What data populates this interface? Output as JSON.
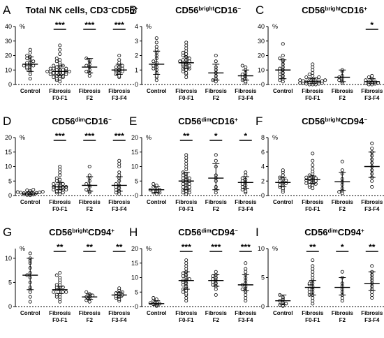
{
  "figure": {
    "group_labels": [
      "Control",
      "Fibrosis\nF0-F1",
      "Fibrosis\nF2",
      "Fibrosis\nF3-F4"
    ],
    "unit": "%"
  },
  "chart_data": [
    {
      "type": "scatter",
      "letter": "A",
      "title_parts": [
        {
          "t": "Total NK cells, CD3"
        },
        {
          "t": "−",
          "sup": true
        },
        {
          "t": "CD56"
        },
        {
          "t": "+",
          "sup": true
        }
      ],
      "ylim": [
        0,
        40
      ],
      "yticks": [
        0,
        10,
        20,
        30,
        40
      ],
      "groups": [
        {
          "median": 14,
          "lo": 9,
          "hi": 19,
          "points": [
            4,
            7,
            9,
            10,
            11,
            12,
            12,
            13,
            13,
            14,
            14,
            15,
            15,
            16,
            17,
            18,
            19,
            20,
            22,
            24
          ]
        },
        {
          "median": 9,
          "lo": 6,
          "hi": 13,
          "points": [
            2,
            3,
            4,
            4,
            5,
            5,
            6,
            6,
            6,
            7,
            7,
            7,
            8,
            8,
            8,
            8,
            9,
            9,
            9,
            9,
            10,
            10,
            10,
            11,
            11,
            11,
            12,
            12,
            13,
            13,
            14,
            15,
            16,
            17,
            18,
            21,
            24,
            27
          ]
        },
        {
          "median": 12,
          "lo": 8,
          "hi": 18,
          "points": [
            6,
            8,
            9,
            10,
            12,
            13,
            14,
            16,
            17,
            18
          ]
        },
        {
          "median": 10,
          "lo": 7,
          "hi": 14,
          "points": [
            5,
            6,
            7,
            8,
            9,
            9,
            10,
            10,
            11,
            12,
            12,
            13,
            14,
            15,
            17,
            20
          ]
        }
      ],
      "sig": [
        "",
        "***",
        "***",
        "***"
      ]
    },
    {
      "type": "scatter",
      "letter": "B",
      "title_parts": [
        {
          "t": "CD56"
        },
        {
          "t": "bright",
          "sup": true
        },
        {
          "t": "CD16"
        },
        {
          "t": "−",
          "sup": true
        }
      ],
      "ylim": [
        0,
        4
      ],
      "yticks": [
        0,
        1,
        2,
        3,
        4
      ],
      "groups": [
        {
          "median": 1.4,
          "lo": 0.7,
          "hi": 2.3,
          "points": [
            0.3,
            0.5,
            0.6,
            0.8,
            1.0,
            1.1,
            1.2,
            1.3,
            1.4,
            1.5,
            1.6,
            1.8,
            2.0,
            2.2,
            2.4,
            2.6,
            2.9,
            3.2
          ]
        },
        {
          "median": 1.5,
          "lo": 1.1,
          "hi": 1.9,
          "points": [
            0.5,
            0.7,
            0.8,
            0.9,
            1.0,
            1.1,
            1.1,
            1.2,
            1.3,
            1.3,
            1.4,
            1.4,
            1.5,
            1.5,
            1.6,
            1.6,
            1.7,
            1.7,
            1.8,
            1.9,
            2.0,
            2.1,
            2.2,
            2.3,
            2.5,
            2.7,
            2.9
          ]
        },
        {
          "median": 0.8,
          "lo": 0.3,
          "hi": 1.4,
          "points": [
            0.2,
            0.3,
            0.4,
            0.6,
            0.8,
            1.0,
            1.2,
            1.6,
            2.0
          ]
        },
        {
          "median": 0.6,
          "lo": 0.3,
          "hi": 1.0,
          "points": [
            0.1,
            0.2,
            0.3,
            0.4,
            0.5,
            0.6,
            0.7,
            0.8,
            1.0,
            1.2,
            1.3
          ]
        }
      ],
      "sig": [
        "",
        "",
        "",
        ""
      ]
    },
    {
      "type": "scatter",
      "letter": "C",
      "title_parts": [
        {
          "t": "CD56"
        },
        {
          "t": "bright",
          "sup": true
        },
        {
          "t": "CD16"
        },
        {
          "t": "+",
          "sup": true
        }
      ],
      "ylim": [
        0,
        40
      ],
      "yticks": [
        0,
        10,
        20,
        30,
        40
      ],
      "groups": [
        {
          "median": 10,
          "lo": 4,
          "hi": 17,
          "points": [
            2,
            3,
            4,
            5,
            6,
            7,
            8,
            9,
            10,
            11,
            12,
            14,
            16,
            17,
            18,
            20,
            28
          ]
        },
        {
          "median": 2,
          "lo": 0.5,
          "hi": 4,
          "points": [
            0,
            0,
            0,
            0.5,
            0.5,
            1,
            1,
            1,
            1.5,
            1.5,
            2,
            2,
            2,
            2.5,
            2.5,
            3,
            3,
            3.5,
            4,
            4,
            5,
            5,
            6,
            7,
            8,
            10,
            12,
            14
          ]
        },
        {
          "median": 5,
          "lo": 2,
          "hi": 10,
          "points": [
            1,
            2,
            3,
            4,
            5,
            6,
            9,
            10
          ]
        },
        {
          "median": 2,
          "lo": 0.5,
          "hi": 4,
          "points": [
            0,
            0,
            0.5,
            1,
            1,
            1.5,
            2,
            2,
            3,
            4,
            5,
            6
          ]
        }
      ],
      "sig": [
        "",
        "",
        "",
        "*"
      ]
    },
    {
      "type": "scatter",
      "letter": "D",
      "title_parts": [
        {
          "t": "CD56"
        },
        {
          "t": "dim",
          "sup": true
        },
        {
          "t": "CD16"
        },
        {
          "t": "−",
          "sup": true
        }
      ],
      "ylim": [
        0,
        20
      ],
      "yticks": [
        0,
        5,
        10,
        15,
        20
      ],
      "groups": [
        {
          "median": 0.8,
          "lo": 0.3,
          "hi": 1.3,
          "points": [
            0.1,
            0.2,
            0.3,
            0.4,
            0.5,
            0.6,
            0.7,
            0.8,
            0.9,
            1.0,
            1.1,
            1.2,
            1.3,
            1.5,
            1.8,
            2.0
          ]
        },
        {
          "median": 3,
          "lo": 2,
          "hi": 4.5,
          "points": [
            0.5,
            1,
            1,
            1.5,
            1.5,
            2,
            2,
            2,
            2.5,
            2.5,
            3,
            3,
            3,
            3.5,
            3.5,
            4,
            4,
            4.5,
            5,
            5.5,
            6,
            7,
            8,
            9,
            10
          ]
        },
        {
          "median": 3.5,
          "lo": 1.5,
          "hi": 6.5,
          "points": [
            1,
            1.5,
            2,
            3,
            3.5,
            4,
            5,
            6,
            7,
            10
          ]
        },
        {
          "median": 3.5,
          "lo": 1.5,
          "hi": 6.5,
          "points": [
            0.5,
            1,
            1.5,
            2,
            2.5,
            3,
            3.5,
            4,
            5,
            6,
            7,
            8,
            10,
            11,
            12
          ]
        }
      ],
      "sig": [
        "",
        "***",
        "***",
        "***"
      ]
    },
    {
      "type": "scatter",
      "letter": "E",
      "title_parts": [
        {
          "t": "CD56"
        },
        {
          "t": "dim",
          "sup": true
        },
        {
          "t": "CD16"
        },
        {
          "t": "+",
          "sup": true
        }
      ],
      "ylim": [
        0,
        20
      ],
      "yticks": [
        0,
        5,
        10,
        15,
        20
      ],
      "groups": [
        {
          "median": 2,
          "lo": 1,
          "hi": 3,
          "points": [
            0.5,
            1,
            1,
            1.5,
            1.5,
            2,
            2,
            2.5,
            3,
            3.5,
            4
          ]
        },
        {
          "median": 5,
          "lo": 2,
          "hi": 8,
          "points": [
            0.5,
            1,
            1,
            1.5,
            2,
            2,
            2.5,
            3,
            3,
            3.5,
            4,
            4,
            4.5,
            5,
            5,
            5.5,
            6,
            6,
            6.5,
            7,
            7.5,
            8,
            9,
            10,
            11,
            12,
            13,
            14
          ]
        },
        {
          "median": 6,
          "lo": 2,
          "hi": 11,
          "points": [
            1,
            2,
            3,
            5,
            6,
            7,
            10,
            12,
            14
          ]
        },
        {
          "median": 4.5,
          "lo": 2.5,
          "hi": 6.5,
          "points": [
            1,
            1.5,
            2,
            2.5,
            3,
            3.5,
            4,
            4.5,
            5,
            5.5,
            6,
            7,
            8
          ]
        }
      ],
      "sig": [
        "",
        "**",
        "*",
        "*"
      ]
    },
    {
      "type": "scatter",
      "letter": "F",
      "title_parts": [
        {
          "t": "CD56"
        },
        {
          "t": "bright",
          "sup": true
        },
        {
          "t": "CD94"
        },
        {
          "t": "−",
          "sup": true
        }
      ],
      "ylim": [
        0,
        8
      ],
      "yticks": [
        0,
        2,
        4,
        6,
        8
      ],
      "groups": [
        {
          "median": 1.8,
          "lo": 1.2,
          "hi": 2.5,
          "points": [
            0.5,
            0.8,
            1.0,
            1.2,
            1.4,
            1.5,
            1.7,
            1.8,
            2.0,
            2.1,
            2.3,
            2.5,
            2.8,
            3.2,
            3.5
          ]
        },
        {
          "median": 2.2,
          "lo": 1.7,
          "hi": 2.7,
          "points": [
            1.0,
            1.2,
            1.4,
            1.5,
            1.6,
            1.7,
            1.8,
            1.9,
            2.0,
            2.1,
            2.2,
            2.3,
            2.4,
            2.5,
            2.6,
            2.8,
            3.0,
            3.3,
            3.7,
            4.2,
            4.8,
            5.8
          ]
        },
        {
          "median": 1.9,
          "lo": 0.7,
          "hi": 3.2,
          "points": [
            0.3,
            0.5,
            0.7,
            1.0,
            1.5,
            1.9,
            2.3,
            3.0,
            3.5,
            4.7
          ]
        },
        {
          "median": 4,
          "lo": 2.5,
          "hi": 6,
          "points": [
            1.2,
            2.0,
            2.5,
            3.0,
            3.5,
            4.0,
            4.5,
            5.0,
            5.5,
            6.0,
            6.5,
            7.2
          ]
        }
      ],
      "sig": [
        "",
        "",
        "",
        ""
      ]
    },
    {
      "type": "scatter",
      "letter": "G",
      "title_parts": [
        {
          "t": "CD56"
        },
        {
          "t": "bright",
          "sup": true
        },
        {
          "t": "CD94"
        },
        {
          "t": "+",
          "sup": true
        }
      ],
      "ylim": [
        0,
        12
      ],
      "yticks": [
        0,
        5,
        10
      ],
      "groups": [
        {
          "median": 6.5,
          "lo": 3.5,
          "hi": 10,
          "points": [
            1,
            2,
            3,
            3.5,
            4,
            5,
            6,
            6.5,
            7,
            8,
            9,
            9.5,
            10,
            11
          ]
        },
        {
          "median": 3.5,
          "lo": 2.7,
          "hi": 4.2,
          "points": [
            1,
            1.5,
            2,
            2,
            2.5,
            2.5,
            3,
            3,
            3,
            3.5,
            3.5,
            4,
            4,
            4,
            4.5,
            4.5,
            5,
            5.5,
            6,
            6.5,
            7
          ]
        },
        {
          "median": 2,
          "lo": 1.5,
          "hi": 2.6,
          "points": [
            1,
            1.3,
            1.6,
            2,
            2,
            2.3,
            2.6,
            3
          ]
        },
        {
          "median": 2.4,
          "lo": 1.9,
          "hi": 3,
          "points": [
            1.2,
            1.5,
            1.8,
            2,
            2.2,
            2.4,
            2.6,
            2.8,
            3,
            3.4,
            3.8
          ]
        }
      ],
      "sig": [
        "",
        "**",
        "**",
        "**"
      ]
    },
    {
      "type": "scatter",
      "letter": "H",
      "title_parts": [
        {
          "t": "CD56"
        },
        {
          "t": "dim",
          "sup": true
        },
        {
          "t": "CD94"
        },
        {
          "t": "−",
          "sup": true
        }
      ],
      "ylim": [
        0,
        20
      ],
      "yticks": [
        0,
        5,
        10,
        15,
        20
      ],
      "groups": [
        {
          "median": 1,
          "lo": 0.5,
          "hi": 2,
          "points": [
            0.2,
            0.5,
            0.8,
            1,
            1.2,
            1.5,
            2,
            2.5,
            3
          ]
        },
        {
          "median": 9,
          "lo": 6,
          "hi": 12,
          "points": [
            2,
            3,
            4,
            4.5,
            5,
            5.5,
            6,
            6.5,
            7,
            7.5,
            8,
            8.5,
            9,
            9,
            9.5,
            10,
            10.5,
            11,
            11.5,
            12,
            13,
            14,
            15,
            16
          ]
        },
        {
          "median": 9,
          "lo": 7,
          "hi": 11,
          "points": [
            4,
            6,
            7,
            7.5,
            8,
            8.5,
            9,
            9.5,
            10,
            10.5,
            11,
            12
          ]
        },
        {
          "median": 7.5,
          "lo": 5.5,
          "hi": 11,
          "points": [
            2,
            3,
            4,
            5,
            5.5,
            6,
            6.5,
            7,
            7.5,
            8,
            9,
            10,
            11,
            12,
            13,
            15
          ]
        }
      ],
      "sig": [
        "",
        "***",
        "***",
        "***"
      ]
    },
    {
      "type": "scatter",
      "letter": "I",
      "title_parts": [
        {
          "t": "CD56"
        },
        {
          "t": "dim",
          "sup": true
        },
        {
          "t": "CD94"
        },
        {
          "t": "+",
          "sup": true
        }
      ],
      "ylim": [
        0,
        10
      ],
      "yticks": [
        0,
        5,
        10
      ],
      "groups": [
        {
          "median": 1,
          "lo": 0.3,
          "hi": 2,
          "points": [
            0.1,
            0.2,
            0.3,
            0.5,
            0.7,
            1,
            1.3,
            1.6,
            2
          ]
        },
        {
          "median": 3.3,
          "lo": 2,
          "hi": 4.5,
          "points": [
            0.5,
            1,
            1.5,
            2,
            2,
            2.5,
            2.5,
            3,
            3,
            3.3,
            3.5,
            3.8,
            4,
            4,
            4.5,
            5,
            5.5,
            6,
            6.5,
            7,
            8
          ]
        },
        {
          "median": 3.3,
          "lo": 2,
          "hi": 5,
          "points": [
            1,
            1.5,
            2,
            2.5,
            3,
            3.5,
            4,
            5,
            6
          ]
        },
        {
          "median": 4,
          "lo": 2.8,
          "hi": 6,
          "points": [
            1.5,
            2,
            2.5,
            3,
            3.5,
            4,
            4.5,
            5,
            5.5,
            6,
            7
          ]
        }
      ],
      "sig": [
        "",
        "**",
        "*",
        "**"
      ]
    }
  ]
}
